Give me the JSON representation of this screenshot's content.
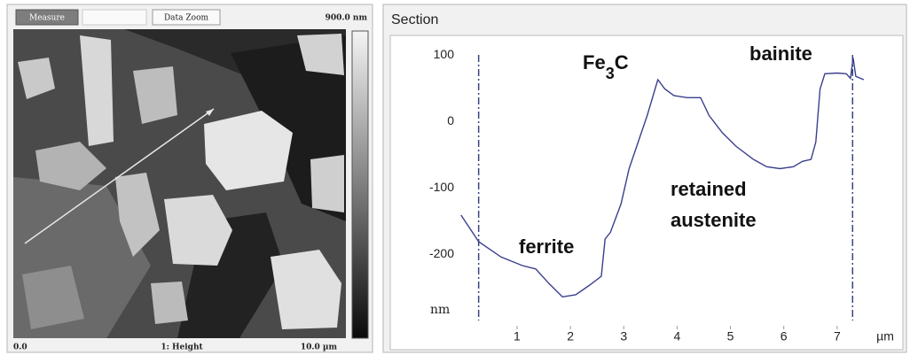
{
  "toolbar": {
    "buttons": [
      "Measure",
      "Data Zoom"
    ],
    "scale_max": "900.0 nm"
  },
  "image_panel": {
    "x_start": "0.0",
    "channel": "1: Height",
    "x_end": "10.0 µm"
  },
  "chart_data": {
    "type": "line",
    "title": "Section",
    "xlabel": "µm",
    "ylabel": "nm",
    "color": "#3b3f8c",
    "x": [
      -0.05,
      0.28,
      0.7,
      1.1,
      1.35,
      1.6,
      1.85,
      2.1,
      2.35,
      2.58,
      2.65,
      2.75,
      2.95,
      3.1,
      3.27,
      3.44,
      3.64,
      3.77,
      3.94,
      4.19,
      4.44,
      4.6,
      4.85,
      5.1,
      5.43,
      5.68,
      5.93,
      6.18,
      6.35,
      6.51,
      6.6,
      6.68,
      6.77,
      7.0,
      7.17,
      7.25,
      7.3,
      7.35,
      7.5
    ],
    "values": [
      -141,
      -181,
      -204,
      -217,
      -222,
      -244,
      -264,
      -261,
      -247,
      -233,
      -177,
      -167,
      -124,
      -71,
      -31,
      9,
      63,
      49,
      39,
      36,
      36,
      9,
      -17,
      -37,
      -57,
      -68,
      -71,
      -68,
      -60,
      -57,
      -31,
      49,
      72,
      73,
      72,
      65,
      96,
      68,
      63
    ],
    "xlim": [
      -0.08,
      8.1
    ],
    "ylim": [
      -313,
      119
    ],
    "xticks": [
      1,
      2,
      3,
      4,
      5,
      6,
      7
    ],
    "yticks": [
      100,
      0,
      -100,
      -200
    ],
    "cursors": [
      0.28,
      7.29
    ],
    "annotations": [
      {
        "text": "ferrite"
      },
      {
        "parts": [
          "Fe",
          "3",
          "C"
        ]
      },
      {
        "lines": [
          "retained",
          "austenite"
        ]
      },
      {
        "text": "bainite"
      }
    ]
  }
}
